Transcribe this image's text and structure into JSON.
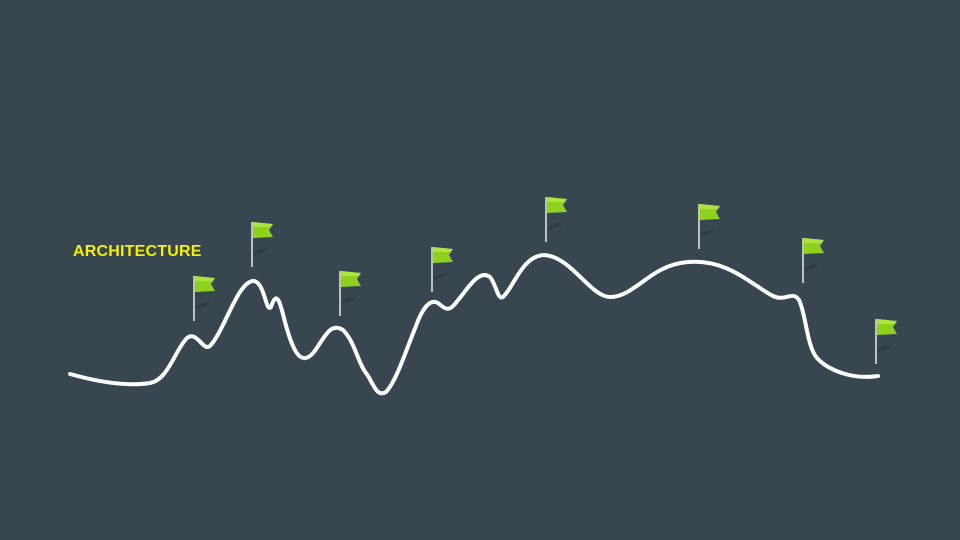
{
  "slide": {
    "title": "ARCHITECTURE",
    "background_color": "#37464f",
    "title_color": "#f5f000",
    "route_line_color": "#ffffff",
    "flag_color": "#8fd21e",
    "flag_pole_color": "#b9c0c4"
  },
  "milestones": [
    {
      "name": "milestone-flag-1",
      "icon": "flag-icon"
    },
    {
      "name": "milestone-flag-2",
      "icon": "flag-icon"
    },
    {
      "name": "milestone-flag-3",
      "icon": "flag-icon"
    },
    {
      "name": "milestone-flag-4",
      "icon": "flag-icon"
    },
    {
      "name": "milestone-flag-5",
      "icon": "flag-icon"
    },
    {
      "name": "milestone-flag-6",
      "icon": "flag-icon"
    },
    {
      "name": "milestone-flag-7",
      "icon": "flag-icon"
    },
    {
      "name": "milestone-flag-8",
      "icon": "flag-icon"
    }
  ]
}
